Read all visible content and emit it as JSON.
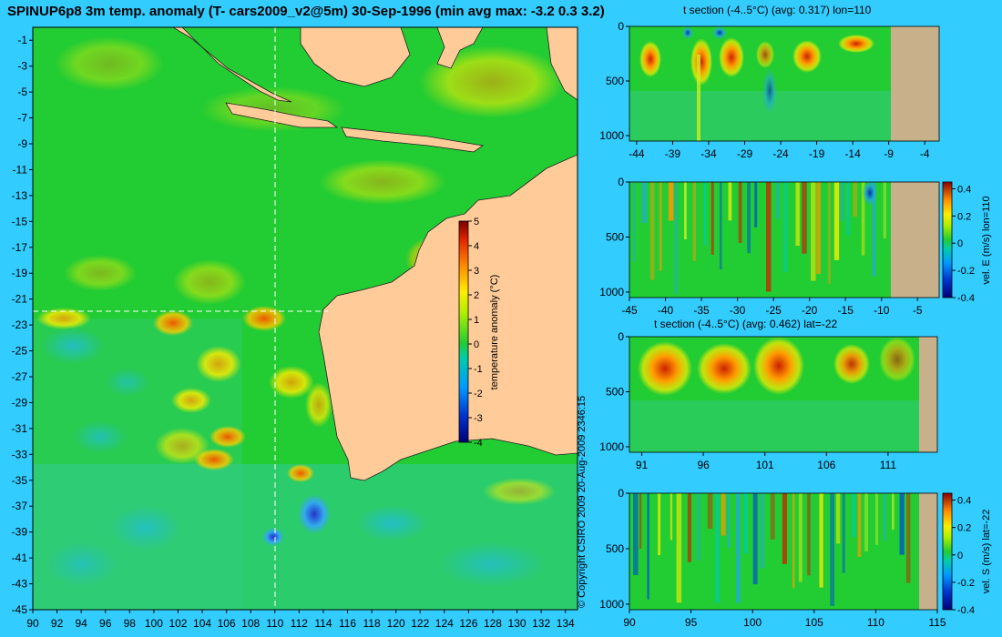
{
  "header": {
    "title": "SPINUP6p8 3m temp. anomaly (T- cars2009_v2@5m) 30-Sep-1996 (min avg max: -3.2 0.3 3.2)"
  },
  "copyright": "© Copyright CSIRO 2009    20-Aug-2009 2346:15",
  "colors": {
    "background": "#33ccff",
    "land": "#ffcc99",
    "land_section": "#c8b08a",
    "ocean_green": "#22cc22"
  },
  "chart_data": [
    {
      "type": "heatmap",
      "title": "SPINUP6p8 3m temp. anomaly (T- cars2009_v2@5m) 30-Sep-1996 (min avg max: -3.2 0.3 3.2)",
      "x_ticks": [
        "90",
        "92",
        "94",
        "96",
        "98",
        "100",
        "102",
        "104",
        "106",
        "108",
        "110",
        "112",
        "114",
        "116",
        "118",
        "120",
        "122",
        "124",
        "126",
        "128",
        "130",
        "132",
        "134"
      ],
      "y_ticks": [
        "-1",
        "-3",
        "-5",
        "-7",
        "-9",
        "-11",
        "-13",
        "-15",
        "-17",
        "-19",
        "-21",
        "-23",
        "-25",
        "-27",
        "-29",
        "-31",
        "-33",
        "-35",
        "-37",
        "-39",
        "-41",
        "-43",
        "-45"
      ],
      "xlim": [
        90,
        135
      ],
      "ylim": [
        -45,
        0
      ],
      "section_lines": {
        "lon": 110,
        "lat": -22
      },
      "colorbar": {
        "label": "temperature anomaly (°C)",
        "ticks": [
          "5",
          "4",
          "3",
          "2",
          "1",
          "0",
          "-1",
          "-2",
          "-3",
          "-4"
        ],
        "range": [
          -4,
          5
        ]
      },
      "stats": {
        "min": -3.2,
        "avg": 0.3,
        "max": 3.2
      }
    },
    {
      "type": "heatmap",
      "title": "t section (-4..5°C) (avg: 0.317) lon=110",
      "x_ticks": [
        "-44",
        "-39",
        "-34",
        "-29",
        "-24",
        "-19",
        "-14",
        "-9",
        "-4"
      ],
      "y_ticks": [
        "0",
        "500",
        "1000"
      ],
      "xlim": [
        -45,
        -2
      ],
      "ylim": [
        1050,
        0
      ],
      "avg": 0.317
    },
    {
      "type": "heatmap",
      "title": "",
      "x_ticks": [
        "-45",
        "-40",
        "-35",
        "-30",
        "-25",
        "-20",
        "-15",
        "-10",
        "-5"
      ],
      "y_ticks": [
        "0",
        "500",
        "1000"
      ],
      "xlim": [
        -45,
        -2
      ],
      "ylim": [
        1050,
        0
      ],
      "colorbar": {
        "label": "vel. E (m/s) lon=110",
        "ticks": [
          "0.4",
          "0.2",
          "0",
          "-0.2",
          "-0.4"
        ],
        "range": [
          -0.4,
          0.45
        ]
      }
    },
    {
      "type": "heatmap",
      "title": "t section (-4..5°C) (avg: 0.462) lat=-22",
      "x_ticks": [
        "91",
        "96",
        "101",
        "106",
        "111"
      ],
      "y_ticks": [
        "0",
        "500",
        "1000"
      ],
      "xlim": [
        90,
        115
      ],
      "ylim": [
        1050,
        0
      ],
      "avg": 0.462
    },
    {
      "type": "heatmap",
      "title": "",
      "x_ticks": [
        "90",
        "95",
        "100",
        "105",
        "110",
        "115"
      ],
      "y_ticks": [
        "0",
        "500",
        "1000"
      ],
      "xlim": [
        90,
        115
      ],
      "ylim": [
        1050,
        0
      ],
      "colorbar": {
        "label": "vel. S (m/s) lat=-22",
        "ticks": [
          "0.4",
          "0.2",
          "0",
          "-0.2",
          "-0.4"
        ],
        "range": [
          -0.4,
          0.45
        ]
      }
    }
  ]
}
